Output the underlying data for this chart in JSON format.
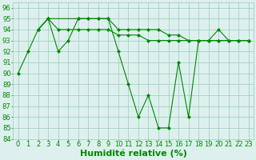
{
  "xlabel": "Humidité relative (%)",
  "xlim": [
    -0.5,
    23.5
  ],
  "ylim": [
    84,
    96.5
  ],
  "yticks": [
    84,
    85,
    86,
    87,
    88,
    89,
    90,
    91,
    92,
    93,
    94,
    95,
    96
  ],
  "xticks": [
    0,
    1,
    2,
    3,
    4,
    5,
    6,
    7,
    8,
    9,
    10,
    11,
    12,
    13,
    14,
    15,
    16,
    17,
    18,
    19,
    20,
    21,
    22,
    23
  ],
  "line1_x": [
    0,
    1,
    2,
    3,
    4,
    5,
    6,
    7,
    8,
    9,
    10,
    11,
    12,
    13,
    14,
    15,
    16,
    17,
    18,
    19,
    20,
    21,
    22,
    23
  ],
  "line1_y": [
    90,
    92,
    94,
    95,
    92,
    93,
    95,
    95,
    95,
    95,
    92,
    89,
    86,
    88,
    85,
    85,
    91,
    86,
    93,
    93,
    94,
    93,
    93,
    93
  ],
  "line2_x": [
    2,
    3,
    6,
    7,
    8,
    9,
    10,
    11,
    12,
    13,
    14,
    15,
    16,
    17,
    18,
    19,
    20,
    21,
    22,
    23
  ],
  "line2_y": [
    94,
    95,
    95,
    95,
    95,
    95,
    94,
    94,
    94,
    94,
    94,
    93.5,
    93.5,
    93,
    93,
    93,
    93,
    93,
    93,
    93
  ],
  "line3_x": [
    2,
    3,
    4,
    5,
    6,
    7,
    8,
    9,
    10,
    11,
    12,
    13,
    14,
    15,
    16,
    17,
    18,
    19,
    20,
    21,
    22,
    23
  ],
  "line3_y": [
    94,
    95,
    94,
    94,
    94,
    94,
    94,
    94,
    93.5,
    93.5,
    93.5,
    93,
    93,
    93,
    93,
    93,
    93,
    93,
    93,
    93,
    93,
    93
  ],
  "line_color": "#008800",
  "bg_color": "#ddf0ee",
  "grid_color": "#99ccbb",
  "tick_label_color": "#008800",
  "xlabel_color": "#008800",
  "tick_fontsize": 6,
  "xlabel_fontsize": 8
}
